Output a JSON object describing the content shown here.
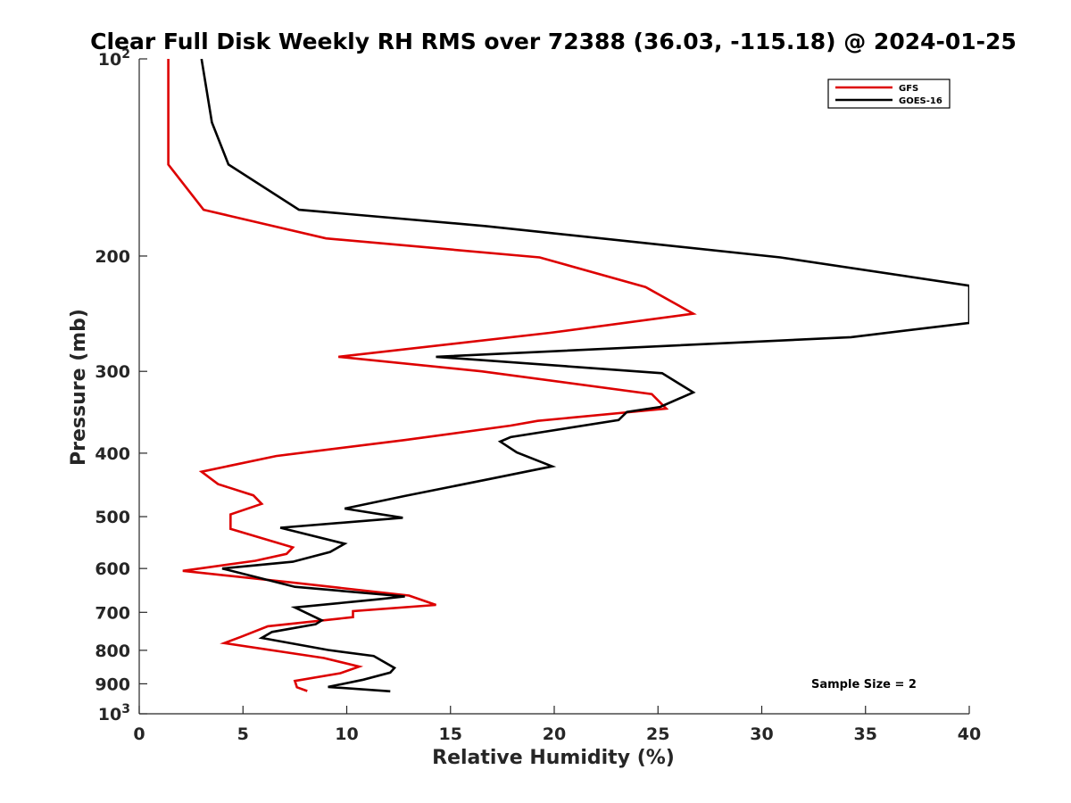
{
  "chart_data": {
    "type": "line",
    "title": "Clear Full Disk Weekly RH RMS over 72388 (36.03, -115.18) @ 2024-01-25",
    "xlabel": "Relative Humidity (%)",
    "ylabel": "Pressure (mb)",
    "xlim": [
      0,
      40
    ],
    "ylim": [
      100,
      1000
    ],
    "y_scale": "log",
    "y_reversed": true,
    "x_ticks": [
      0,
      5,
      10,
      15,
      20,
      25,
      30,
      35,
      40
    ],
    "y_ticks": [
      {
        "value": 100,
        "label": "10",
        "sup": "2"
      },
      {
        "value": 200,
        "label": "200"
      },
      {
        "value": 300,
        "label": "300"
      },
      {
        "value": 400,
        "label": "400"
      },
      {
        "value": 500,
        "label": "500"
      },
      {
        "value": 600,
        "label": "600"
      },
      {
        "value": 700,
        "label": "700"
      },
      {
        "value": 800,
        "label": "800"
      },
      {
        "value": 900,
        "label": "900"
      },
      {
        "value": 1000,
        "label": "10",
        "sup": "3"
      }
    ],
    "grid": false,
    "legend_position": "top-right",
    "series": [
      {
        "name": "GFS",
        "color": "#dd0000",
        "points": [
          [
            1.4,
            100
          ],
          [
            1.4,
            125
          ],
          [
            1.4,
            145
          ],
          [
            3.1,
            170
          ],
          [
            9.0,
            188
          ],
          [
            19.3,
            201
          ],
          [
            24.4,
            223
          ],
          [
            26.7,
            245
          ],
          [
            19.8,
            262
          ],
          [
            9.6,
            285
          ],
          [
            16.5,
            300
          ],
          [
            24.7,
            325
          ],
          [
            25.4,
            342
          ],
          [
            19.2,
            357
          ],
          [
            17.9,
            363
          ],
          [
            12.8,
            382
          ],
          [
            6.6,
            404
          ],
          [
            3.0,
            427
          ],
          [
            3.8,
            446
          ],
          [
            5.5,
            464
          ],
          [
            5.9,
            478
          ],
          [
            4.4,
            496
          ],
          [
            4.4,
            522
          ],
          [
            7.4,
            557
          ],
          [
            7.1,
            570
          ],
          [
            5.6,
            584
          ],
          [
            2.1,
            605
          ],
          [
            7.3,
            630
          ],
          [
            13.0,
            660
          ],
          [
            14.3,
            682
          ],
          [
            10.3,
            697
          ],
          [
            10.3,
            712
          ],
          [
            6.2,
            735
          ],
          [
            4.9,
            763
          ],
          [
            4.1,
            780
          ],
          [
            8.9,
            822
          ],
          [
            10.6,
            847
          ],
          [
            9.7,
            867
          ],
          [
            7.5,
            891
          ],
          [
            7.6,
            911
          ],
          [
            8.1,
            923
          ]
        ]
      },
      {
        "name": "GOES-16",
        "color": "#000000",
        "points": [
          [
            3.0,
            100
          ],
          [
            3.5,
            125
          ],
          [
            4.3,
            145
          ],
          [
            7.7,
            170
          ],
          [
            16.7,
            180
          ],
          [
            30.9,
            201
          ],
          [
            40.0,
            222
          ],
          [
            40.0,
            253
          ],
          [
            34.3,
            266
          ],
          [
            14.3,
            285
          ],
          [
            25.2,
            302
          ],
          [
            26.7,
            323
          ],
          [
            25.1,
            340
          ],
          [
            23.5,
            346
          ],
          [
            23.1,
            356
          ],
          [
            17.9,
            378
          ],
          [
            17.4,
            384
          ],
          [
            18.2,
            399
          ],
          [
            19.9,
            419
          ],
          [
            16.9,
            438
          ],
          [
            12.8,
            465
          ],
          [
            9.9,
            486
          ],
          [
            12.7,
            502
          ],
          [
            6.8,
            520
          ],
          [
            9.9,
            550
          ],
          [
            9.2,
            566
          ],
          [
            7.4,
            586
          ],
          [
            4.0,
            600
          ],
          [
            7.5,
            640
          ],
          [
            12.8,
            662
          ],
          [
            11.4,
            669
          ],
          [
            10.2,
            675
          ],
          [
            7.5,
            688
          ],
          [
            8.8,
            720
          ],
          [
            8.5,
            730
          ],
          [
            6.4,
            750
          ],
          [
            5.9,
            766
          ],
          [
            9.1,
            799
          ],
          [
            11.3,
            816
          ],
          [
            12.3,
            851
          ],
          [
            12.1,
            865
          ],
          [
            10.8,
            887
          ],
          [
            9.1,
            910
          ],
          [
            12.1,
            924
          ]
        ]
      }
    ],
    "annotations": [
      "Sample Size = 2"
    ]
  }
}
